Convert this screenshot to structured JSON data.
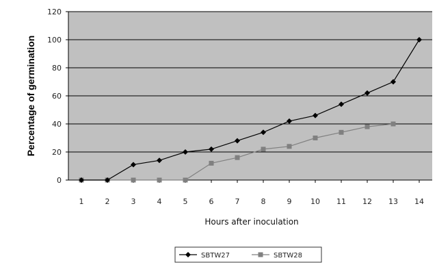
{
  "chart_data": {
    "type": "line",
    "xlabel": "Hours after inoculation",
    "ylabel": "Percentage of germination",
    "x": [
      1,
      2,
      3,
      4,
      5,
      6,
      7,
      8,
      9,
      10,
      11,
      12,
      13,
      14
    ],
    "xticks": [
      "1",
      "2",
      "3",
      "4",
      "5",
      "6",
      "7",
      "8",
      "9",
      "10",
      "11",
      "12",
      "13",
      "14"
    ],
    "ylim": [
      0,
      120
    ],
    "yticks": [
      "0",
      "20",
      "40",
      "60",
      "80",
      "100",
      "120"
    ],
    "grid": "horizontal",
    "legend_position": "bottom",
    "plot_background": "#c0c0c0",
    "series": [
      {
        "name": "SBTW27",
        "color": "#000000",
        "marker": "diamond",
        "x": [
          1,
          2,
          3,
          4,
          5,
          6,
          7,
          8,
          9,
          10,
          11,
          12,
          13,
          14
        ],
        "values": [
          0,
          0,
          11,
          14,
          20,
          22,
          28,
          34,
          42,
          46,
          54,
          62,
          70,
          100
        ]
      },
      {
        "name": "SBTW28",
        "color": "#808080",
        "marker": "square",
        "x": [
          1,
          2,
          3,
          4,
          5,
          6,
          7,
          8,
          9,
          10,
          11,
          12,
          13
        ],
        "values": [
          0,
          0,
          0,
          0,
          0,
          12,
          16,
          22,
          24,
          30,
          34,
          38,
          40
        ]
      }
    ]
  }
}
